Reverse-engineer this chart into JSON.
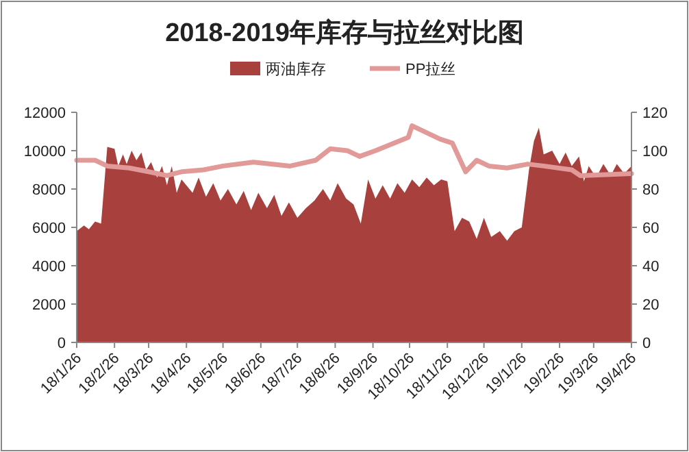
{
  "chart_data": {
    "type": "area",
    "title": "2018-2019年库存与拉丝对比图",
    "legend": "top",
    "grid": false,
    "xlim": [
      "2018-01-26",
      "2019-04-26"
    ],
    "xticks": [
      {
        "value": "2018-01-26",
        "label": "18/1/26"
      },
      {
        "value": "2018-02-26",
        "label": "18/2/26"
      },
      {
        "value": "2018-03-26",
        "label": "18/3/26"
      },
      {
        "value": "2018-04-26",
        "label": "18/4/26"
      },
      {
        "value": "2018-05-26",
        "label": "18/5/26"
      },
      {
        "value": "2018-06-26",
        "label": "18/6/26"
      },
      {
        "value": "2018-07-26",
        "label": "18/7/26"
      },
      {
        "value": "2018-08-26",
        "label": "18/8/26"
      },
      {
        "value": "2018-09-26",
        "label": "18/9/26"
      },
      {
        "value": "2018-10-26",
        "label": "18/10/26"
      },
      {
        "value": "2018-11-26",
        "label": "18/11/26"
      },
      {
        "value": "2018-12-26",
        "label": "18/12/26"
      },
      {
        "value": "2019-01-26",
        "label": "19/1/26"
      },
      {
        "value": "2019-02-26",
        "label": "19/2/26"
      },
      {
        "value": "2019-03-26",
        "label": "19/3/26"
      },
      {
        "value": "2019-04-26",
        "label": "19/4/26"
      }
    ],
    "ylim": [
      0,
      12000
    ],
    "yticks": [
      0,
      2000,
      4000,
      6000,
      8000,
      10000,
      12000
    ],
    "y2lim": [
      0,
      120
    ],
    "y2ticks": [
      0,
      20,
      40,
      60,
      80,
      100,
      120
    ],
    "series": [
      {
        "name": "两油库存",
        "axis": "y",
        "color": "#a8403e",
        "x": [
          "2018-01-26",
          "2018-02-01",
          "2018-02-05",
          "2018-02-10",
          "2018-02-15",
          "2018-02-20",
          "2018-02-26",
          "2018-03-01",
          "2018-03-05",
          "2018-03-08",
          "2018-03-12",
          "2018-03-16",
          "2018-03-20",
          "2018-03-24",
          "2018-03-28",
          "2018-04-02",
          "2018-04-06",
          "2018-04-10",
          "2018-04-14",
          "2018-04-18",
          "2018-04-22",
          "2018-05-01",
          "2018-05-06",
          "2018-05-12",
          "2018-05-18",
          "2018-05-24",
          "2018-05-30",
          "2018-06-06",
          "2018-06-12",
          "2018-06-18",
          "2018-06-24",
          "2018-07-01",
          "2018-07-07",
          "2018-07-13",
          "2018-07-19",
          "2018-07-26",
          "2018-08-02",
          "2018-08-09",
          "2018-08-16",
          "2018-08-22",
          "2018-08-28",
          "2018-09-04",
          "2018-09-10",
          "2018-09-16",
          "2018-09-22",
          "2018-09-28",
          "2018-10-04",
          "2018-10-10",
          "2018-10-16",
          "2018-10-22",
          "2018-10-28",
          "2018-11-03",
          "2018-11-09",
          "2018-11-15",
          "2018-11-21",
          "2018-11-26",
          "2018-12-02",
          "2018-12-08",
          "2018-12-14",
          "2018-12-20",
          "2018-12-26",
          "2019-01-01",
          "2019-01-08",
          "2019-01-14",
          "2019-01-20",
          "2019-01-26",
          "2019-02-01",
          "2019-02-05",
          "2019-02-09",
          "2019-02-13",
          "2019-02-20",
          "2019-02-26",
          "2019-03-03",
          "2019-03-08",
          "2019-03-14",
          "2019-03-18",
          "2019-03-22",
          "2019-03-28",
          "2019-04-03",
          "2019-04-09",
          "2019-04-14",
          "2019-04-20",
          "2019-04-26"
        ],
        "values": [
          5800,
          6100,
          5900,
          6300,
          6200,
          10200,
          10100,
          9200,
          9800,
          9300,
          10000,
          9500,
          9900,
          9000,
          9400,
          8600,
          9200,
          8200,
          9200,
          7800,
          8500,
          7800,
          8600,
          7600,
          8300,
          7400,
          8000,
          7200,
          7900,
          6900,
          7800,
          7000,
          7700,
          6600,
          7300,
          6500,
          7000,
          7400,
          8000,
          7400,
          8300,
          7500,
          7200,
          6200,
          8500,
          7500,
          8200,
          7500,
          8300,
          7800,
          8500,
          8100,
          8600,
          8200,
          8500,
          8400,
          5800,
          6500,
          6300,
          5400,
          6500,
          5500,
          5800,
          5300,
          5800,
          6000,
          9000,
          10500,
          11200,
          9800,
          10000,
          9300,
          9900,
          9200,
          9700,
          8400,
          9200,
          8600,
          9300,
          8700,
          9300,
          8800,
          9200
        ]
      },
      {
        "name": "PP拉丝",
        "type": "line",
        "axis": "y2",
        "color": "#e29a98",
        "x": [
          "2018-01-26",
          "2018-02-10",
          "2018-02-20",
          "2018-03-10",
          "2018-03-26",
          "2018-04-10",
          "2018-04-22",
          "2018-05-10",
          "2018-05-26",
          "2018-06-20",
          "2018-07-20",
          "2018-08-10",
          "2018-08-22",
          "2018-09-05",
          "2018-09-15",
          "2018-09-28",
          "2018-10-25",
          "2018-10-28",
          "2018-11-20",
          "2018-11-30",
          "2018-12-11",
          "2018-12-20",
          "2018-12-30",
          "2019-01-14",
          "2019-01-31",
          "2019-02-13",
          "2019-03-08",
          "2019-03-15",
          "2019-04-26"
        ],
        "values": [
          95,
          95,
          92,
          91,
          89,
          87,
          89,
          90,
          92,
          94,
          92,
          95,
          101,
          100,
          97,
          100,
          107,
          113,
          106,
          104,
          89,
          95,
          92,
          91,
          93,
          92,
          90,
          87,
          88
        ]
      }
    ]
  }
}
